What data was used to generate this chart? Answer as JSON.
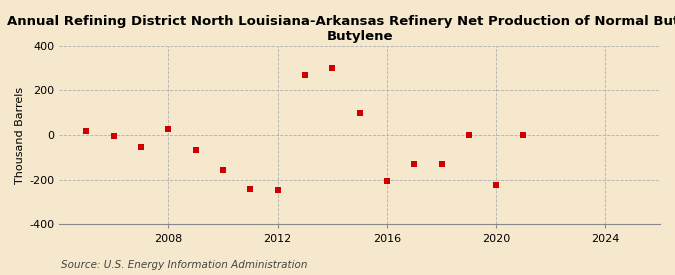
{
  "title": "Annual Refining District North Louisiana-Arkansas Refinery Net Production of Normal Butane-\nButylene",
  "ylabel": "Thousand Barrels",
  "source": "Source: U.S. Energy Information Administration",
  "background_color": "#f5e8cc",
  "years": [
    2005,
    2006,
    2007,
    2008,
    2009,
    2010,
    2011,
    2012,
    2013,
    2014,
    2015,
    2016,
    2017,
    2018,
    2019,
    2020,
    2021
  ],
  "values": [
    20,
    -5,
    -55,
    25,
    -65,
    -155,
    -240,
    -245,
    270,
    300,
    100,
    -205,
    -130,
    -130,
    -2,
    -225,
    -2
  ],
  "marker_color": "#cc0000",
  "marker_size": 5,
  "xlim": [
    2004,
    2026
  ],
  "ylim": [
    -400,
    400
  ],
  "yticks": [
    -400,
    -200,
    0,
    200,
    400
  ],
  "xticks": [
    2008,
    2012,
    2016,
    2020,
    2024
  ],
  "grid_color": "#b0b0b0",
  "title_fontsize": 9.5,
  "axis_fontsize": 8,
  "source_fontsize": 7.5
}
